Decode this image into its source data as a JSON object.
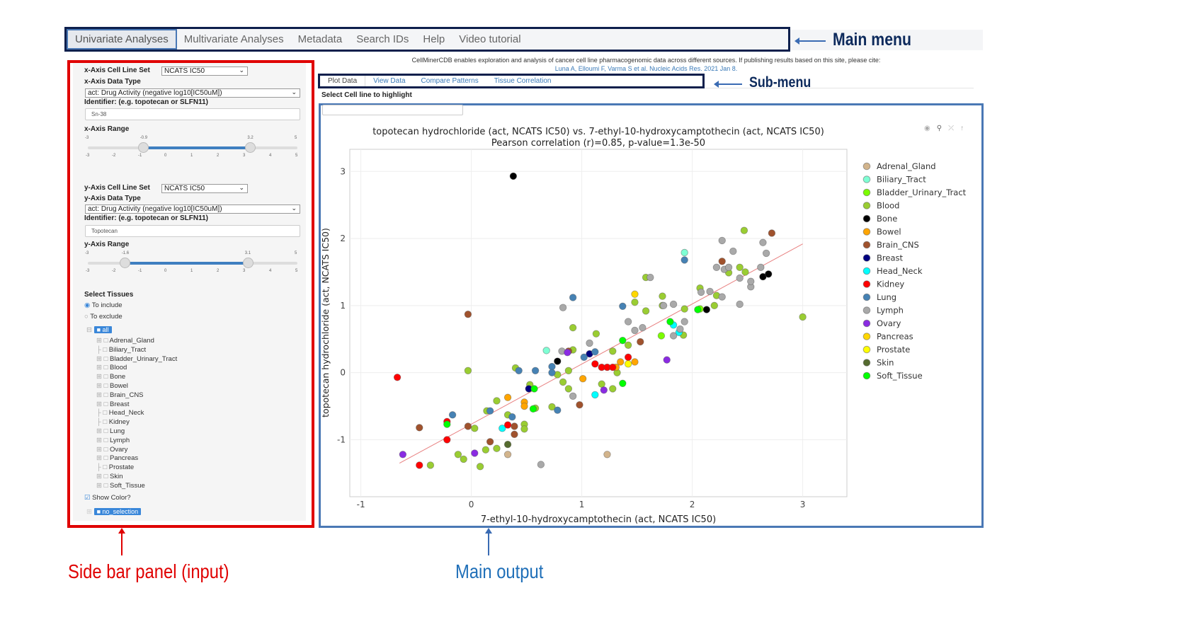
{
  "main_menu": {
    "tabs": [
      "Univariate Analyses",
      "Multivariate Analyses",
      "Metadata",
      "Search IDs",
      "Help",
      "Video tutorial"
    ],
    "active": 0
  },
  "annotations": {
    "main_menu": "Main menu",
    "sub_menu": "Sub-menu",
    "sidebar": "Side bar panel (input)",
    "main_output": "Main output"
  },
  "sidebar": {
    "x_cell_line_set_label": "x-Axis Cell Line Set",
    "x_cell_line_set": "NCATS IC50",
    "x_data_type_label": "x-Axis Data Type",
    "x_data_type": "act: Drug Activity (negative log10[IC50uM])",
    "x_identifier_label": "Identifier: (e.g. topotecan or SLFN11)",
    "x_identifier": "Sn-38",
    "x_range_label": "x-Axis Range",
    "x_range": {
      "min": -3,
      "max": 5,
      "low": -0.9,
      "high": 3.2,
      "min_label": "-3",
      "max_label": "5",
      "low_label": "-0.9",
      "high_label": "3.2"
    },
    "y_cell_line_set_label": "y-Axis Cell Line Set",
    "y_cell_line_set": "NCATS IC50",
    "y_data_type_label": "y-Axis Data Type",
    "y_data_type": "act: Drug Activity (negative log10[IC50uM])",
    "y_identifier_label": "Identifier: (e.g. topotecan or SLFN11)",
    "y_identifier": "Topotecan",
    "y_range_label": "y-Axis Range",
    "y_range": {
      "min": -3,
      "max": 5,
      "low": -1.6,
      "high": 3.1,
      "min_label": "-3",
      "max_label": "5",
      "low_label": "-1.6",
      "high_label": "3.1"
    },
    "slider_ticks": [
      "-3",
      "-2",
      "-1",
      "0",
      "1",
      "2",
      "3",
      "4",
      "5"
    ],
    "select_tissues_label": "Select Tissues",
    "include_label": "To include",
    "exclude_label": "To exclude",
    "include_selected": true,
    "tree_root": "all",
    "tissues": [
      {
        "name": "Adrenal_Gland",
        "expandable": true
      },
      {
        "name": "Biliary_Tract",
        "expandable": false
      },
      {
        "name": "Bladder_Urinary_Tract",
        "expandable": true
      },
      {
        "name": "Blood",
        "expandable": true
      },
      {
        "name": "Bone",
        "expandable": true
      },
      {
        "name": "Bowel",
        "expandable": true
      },
      {
        "name": "Brain_CNS",
        "expandable": true
      },
      {
        "name": "Breast",
        "expandable": true
      },
      {
        "name": "Head_Neck",
        "expandable": false
      },
      {
        "name": "Kidney",
        "expandable": false
      },
      {
        "name": "Lung",
        "expandable": true
      },
      {
        "name": "Lymph",
        "expandable": true
      },
      {
        "name": "Ovary",
        "expandable": true
      },
      {
        "name": "Pancreas",
        "expandable": true
      },
      {
        "name": "Prostate",
        "expandable": false
      },
      {
        "name": "Skin",
        "expandable": true
      },
      {
        "name": "Soft_Tissue",
        "expandable": true
      }
    ],
    "show_color_label": "Show Color?",
    "show_color": true,
    "no_selection": "no_selection"
  },
  "main": {
    "credit": "CellMinerCDB enables exploration and analysis of cancer cell line pharmacogenomic data across different sources. If publishing results based on this site, please cite:",
    "citation": "Luna A, Elloumi F, Varma S et al. Nucleic Acids Res. 2021 Jan 8.",
    "sub_tabs": [
      "Plot Data",
      "View Data",
      "Compare Patterns",
      "Tissue Correlation"
    ],
    "highlight_label": "Select Cell line to highlight",
    "highlight_value": "",
    "toolbar_icons": [
      "camera-icon",
      "zoom-icon",
      "autoscale-icon",
      "reset-icon"
    ]
  },
  "chart_data": {
    "type": "scatter",
    "title": "topotecan hydrochloride (act, NCATS IC50) vs. 7-ethyl-10-hydroxycamptothecin (act, NCATS IC50)",
    "subtitle": "Pearson correlation (r)=0.85, p-value=1.3e-50",
    "xlabel": "7-ethyl-10-hydroxycamptothecin (act, NCATS IC50)",
    "ylabel": "topotecan hydrochloride (act, NCATS IC50)",
    "xlim": [
      -1.1,
      3.4
    ],
    "ylim": [
      -1.85,
      3.33
    ],
    "xticks": [
      -1,
      0,
      1,
      2,
      3
    ],
    "yticks": [
      -1,
      0,
      1,
      2,
      3
    ],
    "grid": true,
    "legend": "right",
    "fit_line": [
      [
        -0.65,
        -1.35
      ],
      [
        3.0,
        1.92
      ]
    ],
    "fit_color": "#e88080",
    "series": [
      {
        "name": "Adrenal_Gland",
        "color": "#d2b48c",
        "points": [
          [
            0.33,
            -1.22
          ],
          [
            1.23,
            -1.22
          ]
        ]
      },
      {
        "name": "Biliary_Tract",
        "color": "#7fffd4",
        "points": [
          [
            0.68,
            0.33
          ],
          [
            1.93,
            1.79
          ]
        ]
      },
      {
        "name": "Bladder_Urinary_Tract",
        "color": "#7cfc00",
        "points": [
          [
            1.72,
            0.55
          ],
          [
            2.07,
            0.95
          ]
        ]
      },
      {
        "name": "Blood",
        "color": "#9acd32",
        "points": [
          [
            -0.03,
            0.03
          ],
          [
            -0.37,
            -1.38
          ],
          [
            -0.12,
            -1.22
          ],
          [
            -0.07,
            -1.29
          ],
          [
            0.08,
            -1.4
          ],
          [
            0.13,
            -1.15
          ],
          [
            0.23,
            -1.13
          ],
          [
            0.03,
            -0.83
          ],
          [
            0.14,
            -0.57
          ],
          [
            0.23,
            -0.42
          ],
          [
            0.33,
            -0.63
          ],
          [
            0.48,
            -0.77
          ],
          [
            0.48,
            -0.84
          ],
          [
            0.4,
            0.07
          ],
          [
            0.53,
            -0.18
          ],
          [
            0.58,
            -0.53
          ],
          [
            0.73,
            -0.51
          ],
          [
            0.78,
            -0.03
          ],
          [
            0.83,
            -0.14
          ],
          [
            0.88,
            -0.24
          ],
          [
            0.88,
            0.03
          ],
          [
            0.92,
            0.34
          ],
          [
            0.92,
            0.67
          ],
          [
            1.13,
            0.58
          ],
          [
            1.18,
            -0.17
          ],
          [
            1.28,
            0.32
          ],
          [
            1.28,
            -0.24
          ],
          [
            1.32,
            0.0
          ],
          [
            1.42,
            0.41
          ],
          [
            1.48,
            1.05
          ],
          [
            1.58,
            0.92
          ],
          [
            1.58,
            1.42
          ],
          [
            1.73,
            1.14
          ],
          [
            1.73,
            1.0
          ],
          [
            1.92,
            0.56
          ],
          [
            1.93,
            0.95
          ],
          [
            2.07,
            1.26
          ],
          [
            2.2,
            1.0
          ],
          [
            2.22,
            1.15
          ],
          [
            2.33,
            1.49
          ],
          [
            2.47,
            2.12
          ],
          [
            2.43,
            1.57
          ],
          [
            2.48,
            1.5
          ],
          [
            3.0,
            0.83
          ]
        ]
      },
      {
        "name": "Bone",
        "color": "#000000",
        "points": [
          [
            0.38,
            2.93
          ],
          [
            0.78,
            0.17
          ],
          [
            2.13,
            0.94
          ],
          [
            2.64,
            1.43
          ],
          [
            2.69,
            1.47
          ]
        ]
      },
      {
        "name": "Bowel",
        "color": "#ffa500",
        "points": [
          [
            0.33,
            -0.37
          ],
          [
            0.48,
            -0.44
          ],
          [
            0.48,
            -0.5
          ],
          [
            1.01,
            -0.09
          ],
          [
            1.31,
            0.08
          ],
          [
            1.35,
            0.16
          ],
          [
            1.48,
            0.16
          ]
        ]
      },
      {
        "name": "Brain_CNS",
        "color": "#a0522d",
        "points": [
          [
            -0.03,
            0.87
          ],
          [
            -0.47,
            -0.82
          ],
          [
            -0.03,
            -0.8
          ],
          [
            0.17,
            -1.03
          ],
          [
            0.39,
            -0.92
          ],
          [
            0.39,
            -0.8
          ],
          [
            0.98,
            -0.48
          ],
          [
            0.88,
            0.32
          ],
          [
            1.53,
            0.46
          ],
          [
            2.72,
            2.08
          ],
          [
            2.27,
            1.66
          ]
        ]
      },
      {
        "name": "Breast",
        "color": "#000080",
        "points": [
          [
            0.52,
            -0.24
          ],
          [
            1.07,
            0.28
          ]
        ]
      },
      {
        "name": "Head_Neck",
        "color": "#00ffff",
        "points": [
          [
            0.28,
            -0.83
          ],
          [
            1.12,
            -0.33
          ],
          [
            1.83,
            0.71
          ],
          [
            1.88,
            0.6
          ]
        ]
      },
      {
        "name": "Kidney",
        "color": "#ff0000",
        "points": [
          [
            -0.67,
            -0.07
          ],
          [
            -0.47,
            -1.38
          ],
          [
            -0.22,
            -1.0
          ],
          [
            -0.22,
            -0.73
          ],
          [
            0.33,
            -0.78
          ],
          [
            1.12,
            0.13
          ],
          [
            1.18,
            0.08
          ],
          [
            1.23,
            0.08
          ],
          [
            1.28,
            0.08
          ],
          [
            1.42,
            0.23
          ]
        ]
      },
      {
        "name": "Lung",
        "color": "#4682b4",
        "points": [
          [
            0.92,
            1.12
          ],
          [
            1.37,
            0.99
          ],
          [
            1.93,
            1.68
          ],
          [
            0.43,
            0.03
          ],
          [
            0.58,
            0.03
          ],
          [
            0.73,
            0.09
          ],
          [
            0.78,
            -0.56
          ],
          [
            -0.17,
            -0.63
          ],
          [
            0.17,
            -0.57
          ],
          [
            0.37,
            -0.66
          ],
          [
            1.12,
            0.31
          ],
          [
            1.02,
            0.23
          ],
          [
            0.73,
            0.0
          ]
        ]
      },
      {
        "name": "Lymph",
        "color": "#a9a9a9",
        "points": [
          [
            0.63,
            -1.37
          ],
          [
            0.83,
            0.97
          ],
          [
            1.62,
            1.42
          ],
          [
            1.42,
            0.76
          ],
          [
            1.55,
            0.67
          ],
          [
            2.27,
            1.97
          ],
          [
            2.37,
            1.81
          ],
          [
            2.64,
            1.94
          ],
          [
            2.67,
            1.78
          ],
          [
            2.22,
            1.57
          ],
          [
            2.29,
            1.54
          ],
          [
            2.33,
            1.57
          ],
          [
            2.43,
            1.41
          ],
          [
            2.53,
            1.28
          ],
          [
            2.53,
            1.36
          ],
          [
            2.43,
            1.02
          ],
          [
            2.27,
            1.13
          ],
          [
            2.08,
            1.2
          ],
          [
            2.16,
            1.21
          ],
          [
            1.89,
            0.65
          ],
          [
            1.83,
            0.55
          ],
          [
            1.74,
            1.0
          ],
          [
            1.83,
            1.02
          ],
          [
            1.93,
            0.76
          ],
          [
            1.07,
            0.44
          ],
          [
            0.82,
            0.32
          ],
          [
            0.92,
            -0.35
          ],
          [
            1.48,
            0.63
          ],
          [
            2.62,
            1.57
          ]
        ]
      },
      {
        "name": "Ovary",
        "color": "#8a2be2",
        "points": [
          [
            -0.62,
            -1.22
          ],
          [
            0.03,
            -1.2
          ],
          [
            0.87,
            0.3
          ],
          [
            1.2,
            -0.26
          ],
          [
            1.77,
            0.19
          ]
        ]
      },
      {
        "name": "Pancreas",
        "color": "#ffd700",
        "points": [
          [
            1.48,
            1.17
          ]
        ]
      },
      {
        "name": "Prostate",
        "color": "#ffff00",
        "points": [
          [
            1.42,
            0.13
          ]
        ]
      },
      {
        "name": "Skin",
        "color": "#556b2f",
        "points": [
          [
            0.33,
            -1.07
          ]
        ]
      },
      {
        "name": "Soft_Tissue",
        "color": "#00ff00",
        "points": [
          [
            -0.22,
            -0.77
          ],
          [
            0.57,
            -0.24
          ],
          [
            0.56,
            -0.54
          ],
          [
            1.37,
            0.48
          ],
          [
            1.37,
            -0.16
          ],
          [
            1.8,
            0.76
          ],
          [
            2.05,
            0.94
          ]
        ]
      }
    ]
  }
}
